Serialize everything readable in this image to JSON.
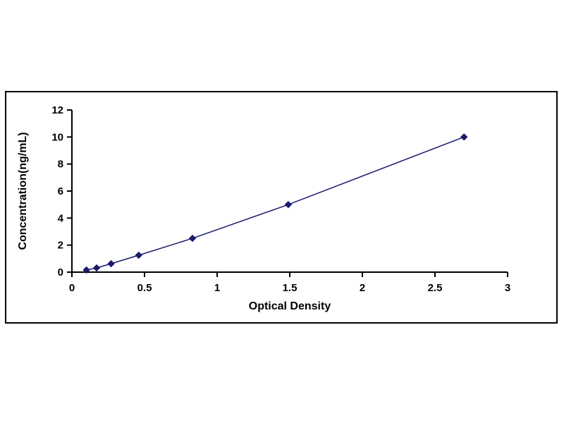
{
  "figure": {
    "background": "#ffffff",
    "frame_border_color": "#000000"
  },
  "chart_data": {
    "type": "line",
    "title": "",
    "xlabel": "Optical Density",
    "ylabel": "Concentration(ng/mL)",
    "x": [
      0.1,
      0.17,
      0.27,
      0.46,
      0.83,
      1.49,
      2.7
    ],
    "y": [
      0.156,
      0.312,
      0.625,
      1.25,
      2.5,
      5,
      10
    ],
    "xlim": [
      0,
      3
    ],
    "ylim": [
      0,
      12
    ],
    "xticks": [
      0,
      0.5,
      1,
      1.5,
      2,
      2.5,
      3
    ],
    "xtick_labels": [
      "0",
      "0.5",
      "1",
      "1.5",
      "2",
      "2.5",
      "3"
    ],
    "yticks": [
      0,
      2,
      4,
      6,
      8,
      10,
      12
    ],
    "ytick_labels": [
      "0",
      "2",
      "4",
      "6",
      "8",
      "10",
      "12"
    ],
    "grid": false,
    "legend": "none",
    "line_color": "#1a1a6e",
    "marker": "diamond",
    "marker_color": "#1a1a6e",
    "axis_color": "#000000"
  }
}
